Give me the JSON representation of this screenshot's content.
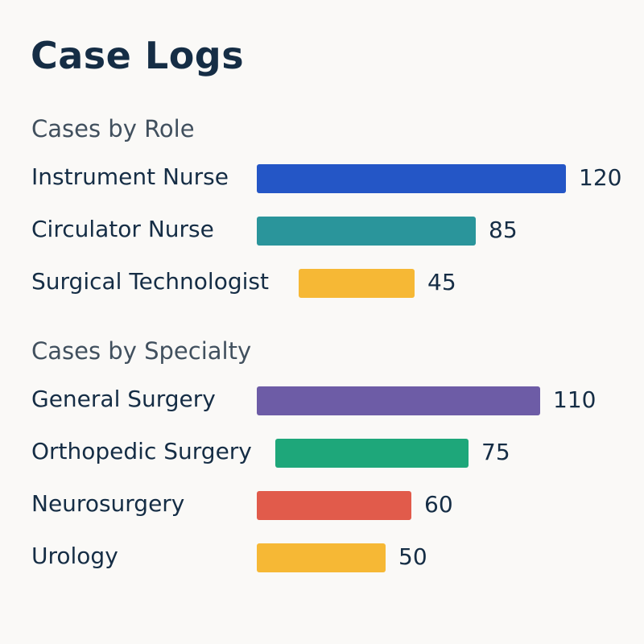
{
  "title": "Case Logs",
  "chart_data": [
    {
      "type": "bar",
      "orientation": "horizontal",
      "title": "Cases by Role",
      "categories": [
        "Instrument Nurse",
        "Circulator Nurse",
        "Surgical Technologist"
      ],
      "values": [
        120,
        85,
        45
      ],
      "colors": [
        "#2456c6",
        "#2a959b",
        "#f6b835"
      ],
      "grid": false
    },
    {
      "type": "bar",
      "orientation": "horizontal",
      "title": "Cases by Specialty",
      "categories": [
        "General Surgery",
        "Orthopedic Surgery",
        "Neurosurgery",
        "Urology"
      ],
      "values": [
        110,
        75,
        60,
        50
      ],
      "colors": [
        "#6d5ca6",
        "#1ea77a",
        "#e15b4b",
        "#f6b835"
      ],
      "grid": false
    }
  ]
}
